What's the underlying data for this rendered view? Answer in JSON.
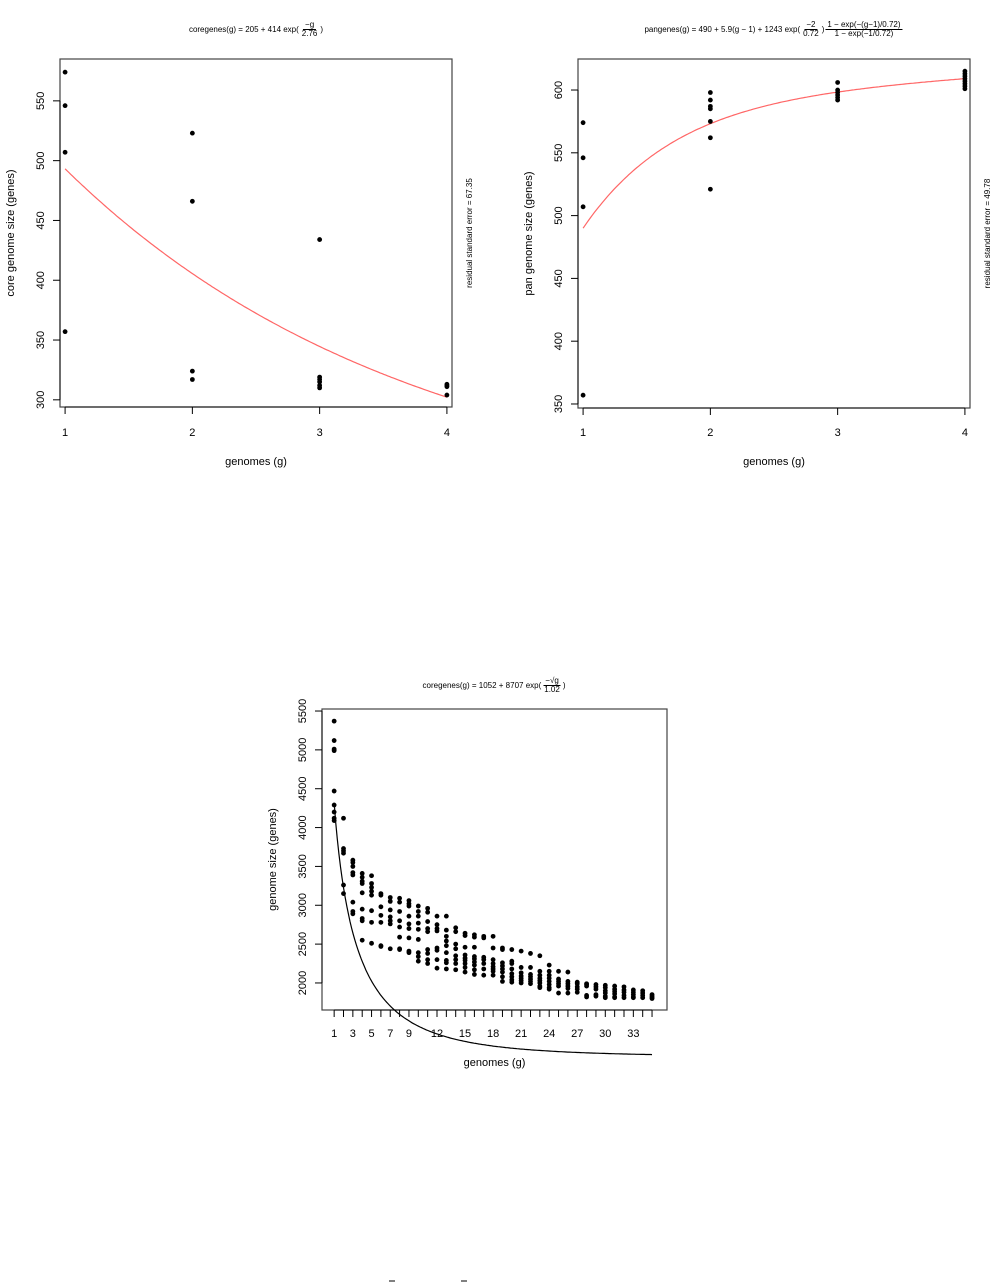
{
  "chart_data": [
    {
      "type": "scatter",
      "title": {
        "prefix": "coregenes(g) = 205 + 414 exp(",
        "num": "−g",
        "den": "2.76",
        "suffix": ")"
      },
      "xlabel": "genomes (g)",
      "ylabel": "core genome size (genes)",
      "side_note": "residual standard error = 67.35",
      "xlim": [
        0.96,
        4.04
      ],
      "ylim": [
        294,
        585
      ],
      "xticks": [
        1,
        2,
        3,
        4
      ],
      "xtick_labels": [
        "1",
        "2",
        "3",
        "4"
      ],
      "yticks": [
        300,
        350,
        400,
        450,
        500,
        550
      ],
      "fit": {
        "model": "core_exp",
        "a": 205,
        "b": 414,
        "c": 2.76,
        "color": "#ff6666"
      },
      "points": {
        "1": [
          574,
          546,
          507,
          357
        ],
        "2": [
          523,
          466,
          324,
          317
        ],
        "3": [
          434,
          319,
          317,
          315,
          312,
          310
        ],
        "4": [
          313,
          312,
          311,
          304
        ]
      }
    },
    {
      "type": "scatter",
      "title": {
        "prefix": "pangenes(g) = 490 + 5.9(g − 1) + 1243 exp(",
        "num": "−2",
        "den": "0.72",
        "mid": ")",
        "num2": "1 − exp(−(g−1)/0.72)",
        "den2": "1 − exp(−1/0.72)"
      },
      "xlabel": "genomes (g)",
      "ylabel": "pan genome size (genes)",
      "side_note": "residual standard error = 49.78",
      "xlim": [
        0.96,
        4.04
      ],
      "ylim": [
        346.8,
        624.7
      ],
      "xticks": [
        1,
        2,
        3,
        4
      ],
      "xtick_labels": [
        "1",
        "2",
        "3",
        "4"
      ],
      "yticks": [
        350,
        400,
        450,
        500,
        550,
        600
      ],
      "fit": {
        "model": "pan",
        "a": 490,
        "b": 5.9,
        "c": 1243,
        "d": 0.72,
        "color": "#ff6666"
      },
      "points": {
        "1": [
          574,
          546,
          507,
          357
        ],
        "2": [
          598,
          592,
          587,
          585,
          575,
          562,
          521
        ],
        "3": [
          606,
          600,
          598,
          596,
          594,
          592
        ],
        "4": [
          615,
          613,
          611,
          609,
          607,
          605,
          603,
          601
        ]
      }
    },
    {
      "type": "scatter",
      "title": {
        "prefix": "coregenes(g) = 1052 + 8707 exp(",
        "num": "−√g",
        "den": "1.02",
        "suffix": ")"
      },
      "xlabel": "genomes (g)",
      "ylabel": "genome size (genes)",
      "side_note": "",
      "xlim": [
        -0.3,
        36.6
      ],
      "ylim": [
        1652,
        5526
      ],
      "xticks": [
        1,
        2,
        3,
        4,
        5,
        6,
        7,
        8,
        9,
        10,
        11,
        12,
        13,
        14,
        15,
        16,
        17,
        18,
        19,
        20,
        21,
        22,
        23,
        24,
        25,
        26,
        27,
        28,
        29,
        30,
        31,
        32,
        33,
        34,
        35
      ],
      "xtick_labels": [
        "1",
        "3",
        "5",
        "7",
        "9",
        "12",
        "15",
        "18",
        "21",
        "24",
        "27",
        "30",
        "33"
      ],
      "yticks": [
        2000,
        2500,
        3000,
        3500,
        4000,
        4500,
        5000,
        5500
      ],
      "fit": {
        "model": "core_sqrt",
        "a": 1052,
        "b": 8707,
        "c": 1.02,
        "color": "#000000"
      },
      "points": {
        "1": [
          5370,
          5120,
          5010,
          4990,
          4470,
          4290,
          4200,
          4120,
          4090
        ],
        "2": [
          4120,
          3730,
          3700,
          3670,
          3260,
          3150
        ],
        "3": [
          3580,
          3550,
          3500,
          3420,
          3390,
          3040,
          2920,
          2890
        ],
        "4": [
          3410,
          3360,
          3310,
          3280,
          3160,
          2950,
          2830,
          2800,
          2550
        ],
        "5": [
          3380,
          3280,
          3230,
          3180,
          3130,
          2930,
          2780,
          2510
        ],
        "6": [
          3150,
          3130,
          2980,
          2870,
          2780,
          2480,
          2470
        ],
        "7": [
          3100,
          3050,
          2940,
          2850,
          2800,
          2760,
          2440
        ],
        "8": [
          3090,
          3040,
          2920,
          2800,
          2720,
          2590,
          2440,
          2430
        ],
        "9": [
          3060,
          3020,
          2990,
          2860,
          2760,
          2700,
          2580,
          2410,
          2390
        ],
        "10": [
          2990,
          2920,
          2860,
          2770,
          2690,
          2560,
          2390,
          2340,
          2280
        ],
        "11": [
          2960,
          2910,
          2790,
          2700,
          2660,
          2430,
          2380,
          2300,
          2250
        ],
        "12": [
          2860,
          2750,
          2700,
          2670,
          2450,
          2420,
          2300,
          2190
        ],
        "13": [
          2860,
          2680,
          2600,
          2540,
          2480,
          2390,
          2290,
          2260,
          2180
        ],
        "14": [
          2710,
          2660,
          2500,
          2440,
          2350,
          2300,
          2250,
          2170
        ],
        "15": [
          2640,
          2610,
          2460,
          2360,
          2320,
          2290,
          2250,
          2200,
          2140
        ],
        "16": [
          2620,
          2590,
          2460,
          2340,
          2310,
          2270,
          2230,
          2170,
          2110
        ],
        "17": [
          2600,
          2580,
          2330,
          2300,
          2250,
          2180,
          2100
        ],
        "18": [
          2600,
          2450,
          2300,
          2250,
          2210,
          2180,
          2150,
          2100
        ],
        "19": [
          2450,
          2430,
          2260,
          2220,
          2180,
          2140,
          2080,
          2020
        ],
        "20": [
          2430,
          2280,
          2250,
          2180,
          2120,
          2080,
          2040,
          2010
        ],
        "21": [
          2410,
          2200,
          2130,
          2090,
          2060,
          2030,
          2000
        ],
        "22": [
          2380,
          2200,
          2110,
          2080,
          2050,
          2020,
          1990
        ],
        "23": [
          2350,
          2150,
          2100,
          2060,
          2030,
          2000,
          1960,
          1940
        ],
        "24": [
          2230,
          2150,
          2100,
          2060,
          2020,
          1980,
          1940,
          1920
        ],
        "25": [
          2150,
          2050,
          2020,
          1990,
          1960,
          1870
        ],
        "26": [
          2140,
          2020,
          1990,
          1960,
          1930,
          1870
        ],
        "27": [
          2010,
          1990,
          1950,
          1920,
          1880
        ],
        "28": [
          1990,
          1980,
          1960,
          1840,
          1820
        ],
        "29": [
          1980,
          1950,
          1920,
          1850,
          1830
        ],
        "30": [
          1970,
          1940,
          1900,
          1870,
          1830,
          1810
        ],
        "31": [
          1960,
          1920,
          1890,
          1860,
          1820,
          1810
        ],
        "32": [
          1950,
          1910,
          1880,
          1840,
          1810
        ],
        "33": [
          1910,
          1880,
          1850,
          1820,
          1810
        ],
        "34": [
          1900,
          1870,
          1840,
          1810
        ],
        "35": [
          1850,
          1830,
          1810,
          1800
        ]
      }
    }
  ]
}
